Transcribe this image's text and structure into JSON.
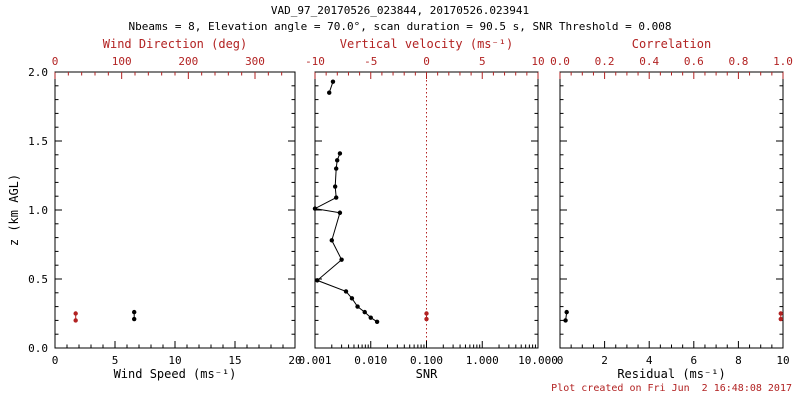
{
  "header": {
    "title": "VAD_97_20170526_023844, 20170526.023941",
    "subtitle": "Nbeams = 8, Elevation angle = 70.0°, scan duration = 90.5 s, SNR Threshold = 0.008"
  },
  "footer": {
    "created": "Plot created on Fri Jun  2 16:48:08 2017"
  },
  "colors": {
    "accent_red": "#b22222",
    "axis_black": "#000000",
    "background": "#ffffff"
  },
  "chart_data": [
    {
      "type": "scatter",
      "panel": "wind",
      "xlabel": "Wind Speed (ms⁻¹)",
      "xlim": [
        0,
        20
      ],
      "x_ticks": [
        0,
        5,
        10,
        15,
        20
      ],
      "x_tick_labels": [
        "0",
        "5",
        "10",
        "15",
        "20"
      ],
      "x_minor_step": 1,
      "top_label": "Wind Direction (deg)",
      "top_lim": [
        0,
        360
      ],
      "top_ticks": [
        0,
        100,
        200,
        300
      ],
      "top_tick_labels": [
        "0",
        "100",
        "200",
        "300"
      ],
      "top_minor_step": 20,
      "ylabel": "z (km AGL)",
      "ylim": [
        0,
        2
      ],
      "y_ticks": [
        0,
        0.5,
        1,
        1.5,
        2
      ],
      "y_tick_labels": [
        "0.0",
        "0.5",
        "1.0",
        "1.5",
        "2.0"
      ],
      "y_minor_step": 0.1,
      "show_y_labels": true,
      "series": [
        {
          "name": "wind-speed",
          "axis": "bottom",
          "color": "#000000",
          "connect": true,
          "points": [
            {
              "x": 6.6,
              "y": 0.21
            },
            {
              "x": 6.6,
              "y": 0.26
            }
          ]
        },
        {
          "name": "wind-direction",
          "axis": "top",
          "color": "#b22222",
          "connect": true,
          "points": [
            {
              "x": 31,
              "y": 0.2
            },
            {
              "x": 31,
              "y": 0.25
            }
          ]
        }
      ]
    },
    {
      "type": "line",
      "panel": "snr",
      "xlabel": "SNR",
      "x_scale": "log",
      "xlim": [
        0.001,
        10
      ],
      "x_ticks": [
        0.001,
        0.01,
        0.1,
        1,
        10
      ],
      "x_tick_labels": [
        "0.001",
        "0.010",
        "0.100",
        "1.000",
        "10.000"
      ],
      "top_label": "Vertical velocity (ms⁻¹)",
      "top_lim": [
        -10,
        10
      ],
      "top_ticks": [
        -10,
        -5,
        0,
        5,
        10
      ],
      "top_tick_labels": [
        "-10",
        "-5",
        "0",
        "5",
        "10"
      ],
      "top_minor_step": 1,
      "ylim": [
        0,
        2
      ],
      "y_ticks": [
        0,
        0.5,
        1,
        1.5,
        2
      ],
      "y_minor_step": 0.1,
      "show_y_labels": false,
      "ref_line": {
        "axis": "top",
        "value": 0,
        "color": "#b22222",
        "style": "dotted"
      },
      "series": [
        {
          "name": "snr-profile",
          "axis": "bottom",
          "color": "#000000",
          "connect": true,
          "points": [
            {
              "x": 0.013,
              "y": 0.19
            },
            {
              "x": 0.01,
              "y": 0.22
            },
            {
              "x": 0.0078,
              "y": 0.26
            },
            {
              "x": 0.0058,
              "y": 0.3
            },
            {
              "x": 0.0046,
              "y": 0.36
            },
            {
              "x": 0.0036,
              "y": 0.41
            },
            {
              "x": 0.0011,
              "y": 0.49
            },
            {
              "x": 0.003,
              "y": 0.64
            },
            {
              "x": 0.002,
              "y": 0.78
            },
            {
              "x": 0.0028,
              "y": 0.98
            },
            {
              "x": 0.001,
              "y": 1.01
            },
            {
              "x": 0.0024,
              "y": 1.09
            },
            {
              "x": 0.0023,
              "y": 1.17
            },
            {
              "x": 0.0024,
              "y": 1.3
            },
            {
              "x": 0.0025,
              "y": 1.36
            },
            {
              "x": 0.0028,
              "y": 1.41
            }
          ]
        },
        {
          "name": "snr-profile-upper",
          "axis": "bottom",
          "color": "#000000",
          "connect": true,
          "points": [
            {
              "x": 0.0018,
              "y": 1.85
            },
            {
              "x": 0.0021,
              "y": 1.93
            }
          ]
        },
        {
          "name": "vertical-velocity",
          "axis": "top",
          "color": "#b22222",
          "connect": true,
          "points": [
            {
              "x": 0,
              "y": 0.21
            },
            {
              "x": 0,
              "y": 0.25
            }
          ]
        }
      ]
    },
    {
      "type": "scatter",
      "panel": "residual",
      "xlabel": "Residual (ms⁻¹)",
      "xlim": [
        0,
        10
      ],
      "x_ticks": [
        0,
        2,
        4,
        6,
        8,
        10
      ],
      "x_tick_labels": [
        "0",
        "2",
        "4",
        "6",
        "8",
        "10"
      ],
      "x_minor_step": 0.5,
      "top_label": "Correlation",
      "top_lim": [
        0,
        1
      ],
      "top_ticks": [
        0,
        0.2,
        0.4,
        0.6,
        0.8,
        1
      ],
      "top_tick_labels": [
        "0.0",
        "0.2",
        "0.4",
        "0.6",
        "0.8",
        "1.0"
      ],
      "top_minor_step": 0.05,
      "ylim": [
        0,
        2
      ],
      "y_ticks": [
        0,
        0.5,
        1,
        1.5,
        2
      ],
      "y_minor_step": 0.1,
      "show_y_labels": false,
      "series": [
        {
          "name": "residual",
          "axis": "bottom",
          "color": "#000000",
          "connect": true,
          "points": [
            {
              "x": 0.25,
              "y": 0.2
            },
            {
              "x": 0.3,
              "y": 0.26
            }
          ]
        },
        {
          "name": "correlation",
          "axis": "top",
          "color": "#b22222",
          "connect": true,
          "points": [
            {
              "x": 0.99,
              "y": 0.21
            },
            {
              "x": 0.99,
              "y": 0.25
            }
          ]
        }
      ]
    }
  ]
}
